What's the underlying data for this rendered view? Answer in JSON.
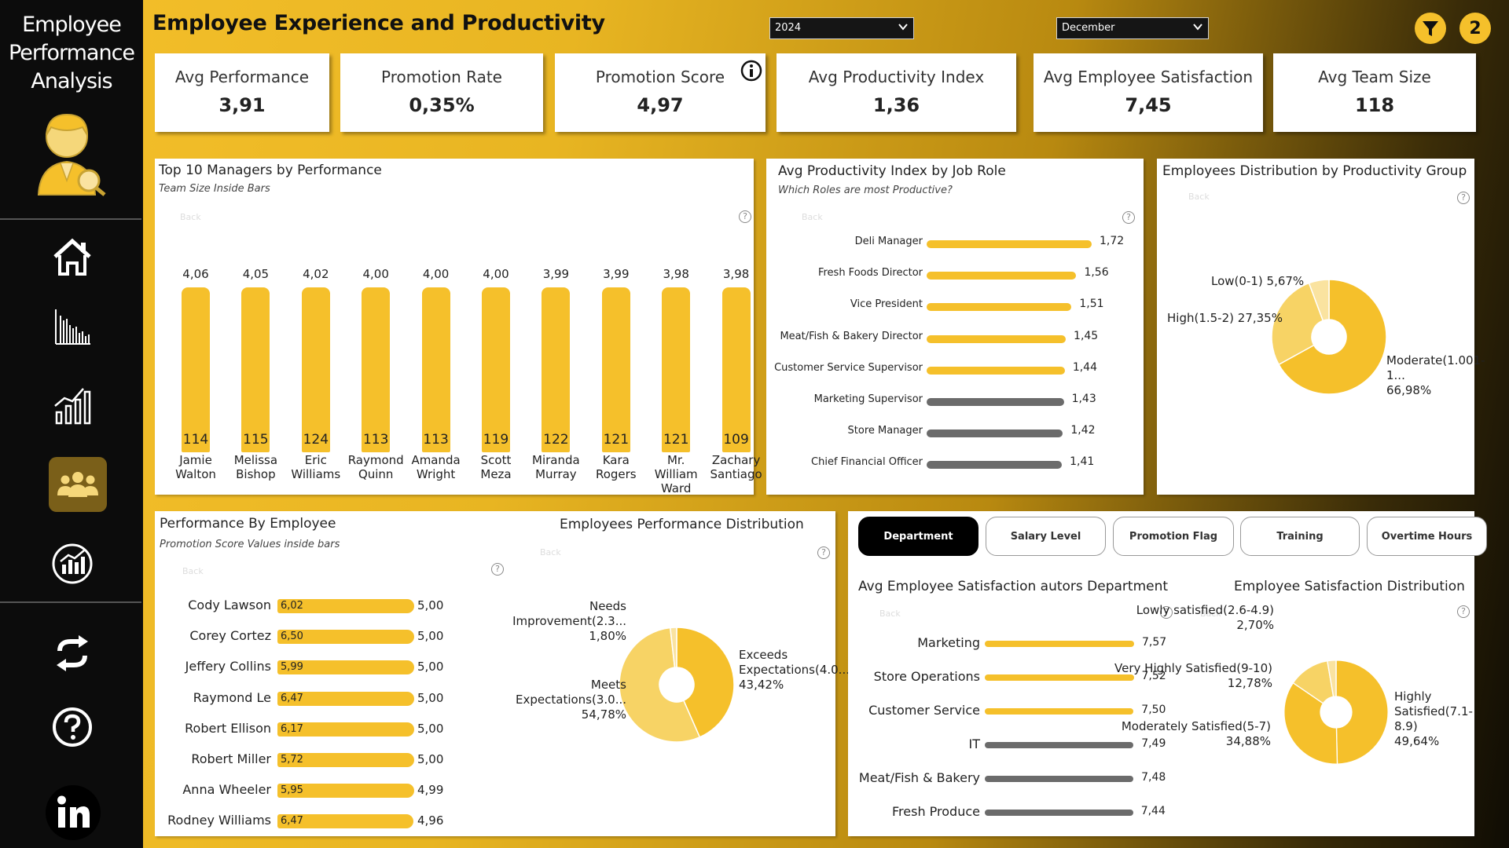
{
  "app": {
    "title_line1": "Employee",
    "title_line2": "Performance",
    "title_line3": "Analysis"
  },
  "header": {
    "title": "Employee Experience and Productivity",
    "year": "2024",
    "month": "December",
    "filter_count": "2"
  },
  "nav": [
    "home-icon",
    "decline-chart-icon",
    "growth-chart-icon",
    "team-icon",
    "stats-icon",
    "refresh-icon",
    "help-icon",
    "linkedin-icon"
  ],
  "kpis": [
    {
      "label": "Avg Performance",
      "value": "3,91"
    },
    {
      "label": "Promotion Rate",
      "value": "0,35%"
    },
    {
      "label": "Promotion Score",
      "value": "4,97"
    },
    {
      "label": "Avg Productivity Index",
      "value": "1,36"
    },
    {
      "label": "Avg Employee Satisfaction",
      "value": "7,45"
    },
    {
      "label": "Avg Team Size",
      "value": "118"
    }
  ],
  "managers": {
    "title": "Top 10 Managers by Performance",
    "subtitle": "Team Size Inside Bars",
    "back": "Back",
    "items": [
      {
        "name1": "Jamie",
        "name2": "Walton",
        "name3": "",
        "value": 4.06,
        "label": "4,06",
        "team": "114"
      },
      {
        "name1": "Melissa",
        "name2": "Bishop",
        "name3": "",
        "value": 4.05,
        "label": "4,05",
        "team": "115"
      },
      {
        "name1": "Eric",
        "name2": "Williams",
        "name3": "",
        "value": 4.02,
        "label": "4,02",
        "team": "124"
      },
      {
        "name1": "Raymond",
        "name2": "Quinn",
        "name3": "",
        "value": 4.0,
        "label": "4,00",
        "team": "113"
      },
      {
        "name1": "Amanda",
        "name2": "Wright",
        "name3": "",
        "value": 4.0,
        "label": "4,00",
        "team": "113"
      },
      {
        "name1": "Scott",
        "name2": "Meza",
        "name3": "",
        "value": 4.0,
        "label": "4,00",
        "team": "119"
      },
      {
        "name1": "Miranda",
        "name2": "Murray",
        "name3": "",
        "value": 3.99,
        "label": "3,99",
        "team": "122"
      },
      {
        "name1": "Kara",
        "name2": "Rogers",
        "name3": "",
        "value": 3.99,
        "label": "3,99",
        "team": "121"
      },
      {
        "name1": "Mr.",
        "name2": "William",
        "name3": "Ward",
        "value": 3.98,
        "label": "3,98",
        "team": "121"
      },
      {
        "name1": "Zachary",
        "name2": "Santiago",
        "name3": "",
        "value": 3.98,
        "label": "3,98",
        "team": "109"
      }
    ]
  },
  "jobroles": {
    "title": "Avg Productivity Index by Job Role",
    "subtitle": "Which Roles are most Productive?",
    "back": "Back",
    "items": [
      {
        "role": "Deli Manager",
        "value": 1.72,
        "label": "1,72",
        "color": "#f5c02b"
      },
      {
        "role": "Fresh Foods Director",
        "value": 1.56,
        "label": "1,56",
        "color": "#f5c02b"
      },
      {
        "role": "Vice President",
        "value": 1.51,
        "label": "1,51",
        "color": "#f5c02b"
      },
      {
        "role": "Meat/Fish & Bakery Director",
        "value": 1.45,
        "label": "1,45",
        "color": "#f5c02b"
      },
      {
        "role": "Customer Service Supervisor",
        "value": 1.44,
        "label": "1,44",
        "color": "#f5c02b"
      },
      {
        "role": "Marketing Supervisor",
        "value": 1.43,
        "label": "1,43",
        "color": "#6b6b6b"
      },
      {
        "role": "Store Manager",
        "value": 1.42,
        "label": "1,42",
        "color": "#6b6b6b"
      },
      {
        "role": "Chief Financial Officer",
        "value": 1.41,
        "label": "1,41",
        "color": "#6b6b6b"
      }
    ]
  },
  "prodgroup": {
    "title": "Employees Distribution by Productivity Group",
    "back": "Back",
    "slices": [
      {
        "name": "Moderate(1.001-1...",
        "pct": 66.98,
        "label": "66,98%",
        "color": "#f5c02b"
      },
      {
        "name": "High(1.5-2)",
        "pct": 27.35,
        "label": "27,35%",
        "color": "#f7d365"
      },
      {
        "name": "Low(0-1)",
        "pct": 5.67,
        "label": "5,67%",
        "color": "#fae3a0"
      }
    ]
  },
  "employees": {
    "title": "Performance By Employee",
    "subtitle": "Promotion Score Values inside bars",
    "back": "Back",
    "items": [
      {
        "name": "Cody Lawson",
        "inside": "6,02",
        "value": 5.0,
        "label": "5,00"
      },
      {
        "name": "Corey Cortez",
        "inside": "6,50",
        "value": 5.0,
        "label": "5,00"
      },
      {
        "name": "Jeffery Collins",
        "inside": "5,99",
        "value": 5.0,
        "label": "5,00"
      },
      {
        "name": "Raymond Le",
        "inside": "6,47",
        "value": 5.0,
        "label": "5,00"
      },
      {
        "name": "Robert Ellison",
        "inside": "6,17",
        "value": 5.0,
        "label": "5,00"
      },
      {
        "name": "Robert Miller",
        "inside": "5,72",
        "value": 5.0,
        "label": "5,00"
      },
      {
        "name": "Anna Wheeler",
        "inside": "5,95",
        "value": 4.99,
        "label": "4,99"
      },
      {
        "name": "Rodney Williams",
        "inside": "6,47",
        "value": 4.96,
        "label": "4,96"
      }
    ]
  },
  "perfdist": {
    "title": "Employees Performance Distribution",
    "back": "Back",
    "slices": [
      {
        "name": "Exceeds Expectations(4.0...",
        "pct": 43.42,
        "label": "43,42%",
        "color": "#f5c02b"
      },
      {
        "name": "Meets Expectations(3.0...",
        "pct": 54.78,
        "label": "54,78%",
        "color": "#f7d365"
      },
      {
        "name": "Needs Improvement(2.3...",
        "pct": 1.8,
        "label": "1,80%",
        "color": "#fae3a0"
      }
    ]
  },
  "tabs": [
    "Department",
    "Salary Level",
    "Promotion Flag",
    "Training",
    "Overtime Hours"
  ],
  "deptsat": {
    "title": "Avg Employee Satisfaction autors Department",
    "back": "Back",
    "items": [
      {
        "dept": "Marketing",
        "value": 7.57,
        "label": "7,57",
        "color": "#f5c02b"
      },
      {
        "dept": "Store Operations",
        "value": 7.52,
        "label": "7,52",
        "color": "#f5c02b"
      },
      {
        "dept": "Customer Service",
        "value": 7.5,
        "label": "7,50",
        "color": "#f5c02b"
      },
      {
        "dept": "IT",
        "value": 7.49,
        "label": "7,49",
        "color": "#6b6b6b"
      },
      {
        "dept": "Meat/Fish & Bakery",
        "value": 7.48,
        "label": "7,48",
        "color": "#6b6b6b"
      },
      {
        "dept": "Fresh Produce",
        "value": 7.44,
        "label": "7,44",
        "color": "#6b6b6b"
      }
    ]
  },
  "satdist": {
    "title": "Employee Satisfaction Distribution",
    "back": "Back",
    "slices": [
      {
        "name": "Highly Satisfied(7.1-8.9)",
        "pct": 49.64,
        "label": "49,64%",
        "color": "#f5c02b"
      },
      {
        "name": "Moderately Satisfied(5-7)",
        "pct": 34.88,
        "label": "34,88%",
        "color": "#f5c02b"
      },
      {
        "name": "Very Highly Satisfied(9-10)",
        "pct": 12.78,
        "label": "12,78%",
        "color": "#f7d365"
      },
      {
        "name": "Lowly satisfied(2.6-4.9)",
        "pct": 2.7,
        "label": "2,70%",
        "color": "#fae3a0"
      }
    ]
  },
  "colors": {
    "accent": "#f5c02b",
    "sidebar": "#0c0c0c",
    "muted_bar": "#6b6b6b"
  }
}
